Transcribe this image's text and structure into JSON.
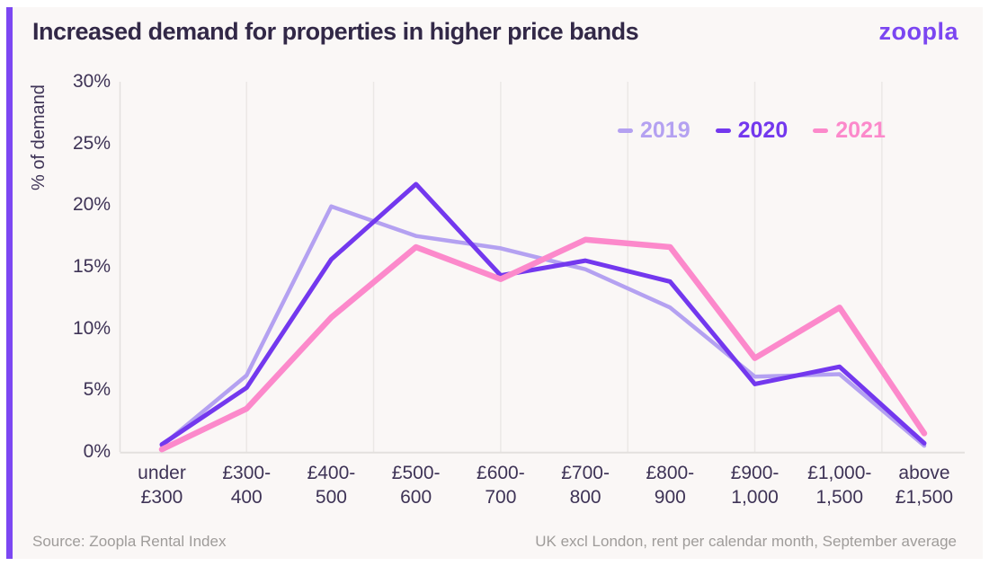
{
  "header": {
    "title": "Increased demand for properties in higher price bands",
    "logo_text": "zoopla"
  },
  "chart_data": {
    "type": "line",
    "title": "Increased demand for properties in higher price bands",
    "xlabel": "",
    "ylabel": "% of demand",
    "ylim": [
      0,
      30
    ],
    "ytick_step": 5,
    "ytick_suffix": "%",
    "grid": "vertical-only",
    "legend_position": "top-right",
    "categories": [
      "under £300",
      "£300-400",
      "£400-500",
      "£500-600",
      "£600-700",
      "£700-800",
      "£800-900",
      "£900-1,000",
      "£1,000-1,500",
      "above £1,500"
    ],
    "category_labels_2line": [
      [
        "under",
        "£300"
      ],
      [
        "£300-",
        "400"
      ],
      [
        "£400-",
        "500"
      ],
      [
        "£500-",
        "600"
      ],
      [
        "£600-",
        "700"
      ],
      [
        "£700-",
        "800"
      ],
      [
        "£800-",
        "900"
      ],
      [
        "£900-",
        "1,000"
      ],
      [
        "£1,000-",
        "1,500"
      ],
      [
        "above",
        "£1,500"
      ]
    ],
    "series": [
      {
        "name": "2019",
        "color": "#b4a1f1",
        "line_width": 4.5,
        "values": [
          0.5,
          6.2,
          19.9,
          17.5,
          16.5,
          14.8,
          11.7,
          6.1,
          6.3,
          0.5
        ]
      },
      {
        "name": "2020",
        "color": "#7338ee",
        "line_width": 5,
        "values": [
          0.6,
          5.2,
          15.6,
          21.7,
          14.3,
          15.5,
          13.8,
          5.5,
          6.9,
          0.7
        ]
      },
      {
        "name": "2021",
        "color": "#fc89cb",
        "line_width": 6.5,
        "values": [
          0.2,
          3.5,
          10.9,
          16.6,
          14.0,
          17.2,
          16.6,
          7.6,
          11.7,
          1.5
        ]
      }
    ]
  },
  "footer": {
    "source": "Source: Zoopla Rental Index",
    "note": "UK excl London, rent per calendar month, September average"
  },
  "colors": {
    "accent": "#7c47f2",
    "background": "#faf7f6",
    "grid": "#ebe8e6",
    "axis": "#e3e0de",
    "title_text": "#322847",
    "tick_text": "#3e3356",
    "footer_text": "#9f9c9a",
    "logo": "#7b46f1",
    "series_2019": "#b4a1f1",
    "series_2020": "#7338ee",
    "series_2021": "#fc89cb"
  }
}
